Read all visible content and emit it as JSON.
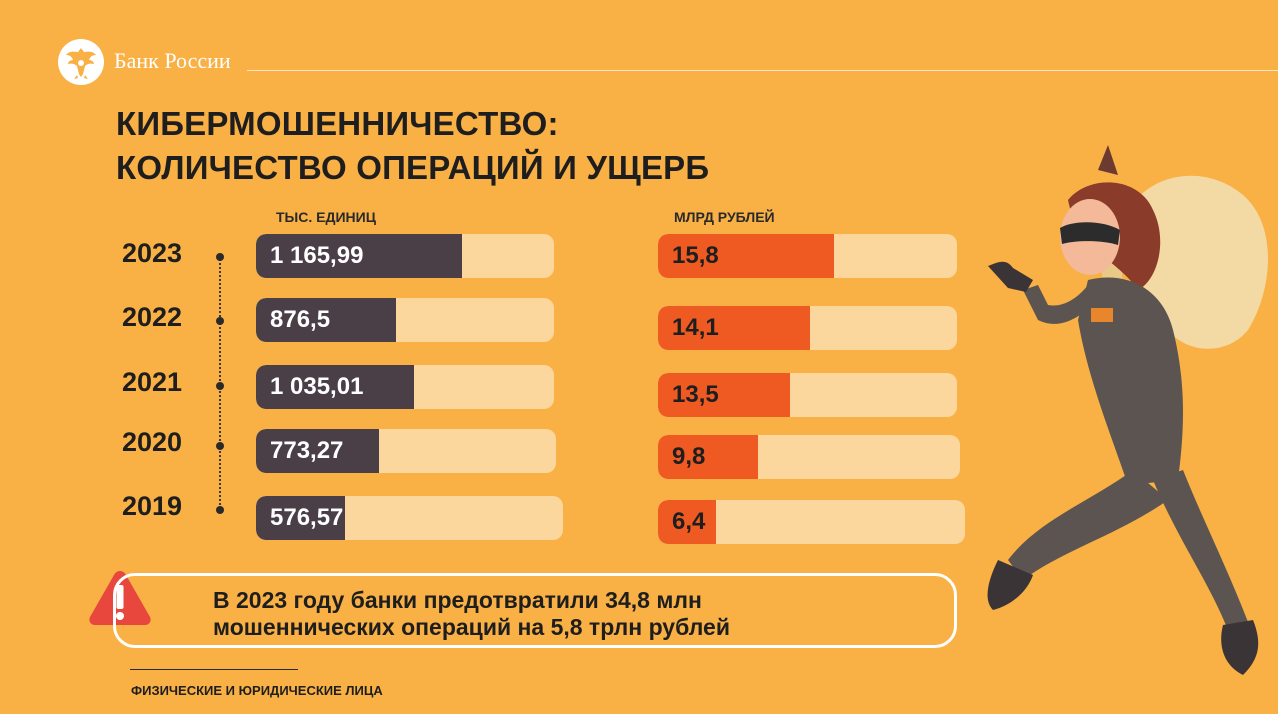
{
  "header": {
    "bank_name": "Банк России",
    "logo_icon": "double-headed-eagle-icon"
  },
  "title": {
    "line1": "КИБЕРМОШЕННИЧЕСТВО:",
    "line2": "КОЛИЧЕСТВО ОПЕРАЦИЙ И УЩЕРБ"
  },
  "chart_data": [
    {
      "type": "bar",
      "orientation": "horizontal",
      "ylabel": "ТЫС. ЕДИНИЦ",
      "categories": [
        "2023",
        "2022",
        "2021",
        "2020",
        "2019"
      ],
      "values": [
        1165.99,
        876.5,
        1035.01,
        773.27,
        576.57
      ],
      "labels": [
        "1 165,99",
        "876,5",
        "1 035,01",
        "773,27",
        "576,57"
      ],
      "fill_fraction": [
        0.69,
        0.47,
        0.53,
        0.41,
        0.29
      ],
      "bar_color": "#4A3F47",
      "track_color": "#FBD79E"
    },
    {
      "type": "bar",
      "orientation": "horizontal",
      "ylabel": "МЛРД РУБЛЕЙ",
      "categories": [
        "2023",
        "2022",
        "2021",
        "2020",
        "2019"
      ],
      "values": [
        15.8,
        14.1,
        13.5,
        9.8,
        6.4
      ],
      "labels": [
        "15,8",
        "14,1",
        "13,5",
        "9,8",
        "6,4"
      ],
      "fill_fraction": [
        0.59,
        0.51,
        0.44,
        0.33,
        0.19
      ],
      "bar_color": "#EE5A22",
      "track_color": "#FBD79E"
    }
  ],
  "callout": {
    "icon": "warning-triangle-icon",
    "line1": "В 2023 году банки предотвратили 34,8 млн",
    "line2": "мошеннических операций на 5,8 трлн рублей"
  },
  "footer": {
    "text": "ФИЗИЧЕСКИЕ И ЮРИДИЧЕСКИЕ ЛИЦА"
  },
  "illustration": {
    "icon": "thief-illustration"
  }
}
